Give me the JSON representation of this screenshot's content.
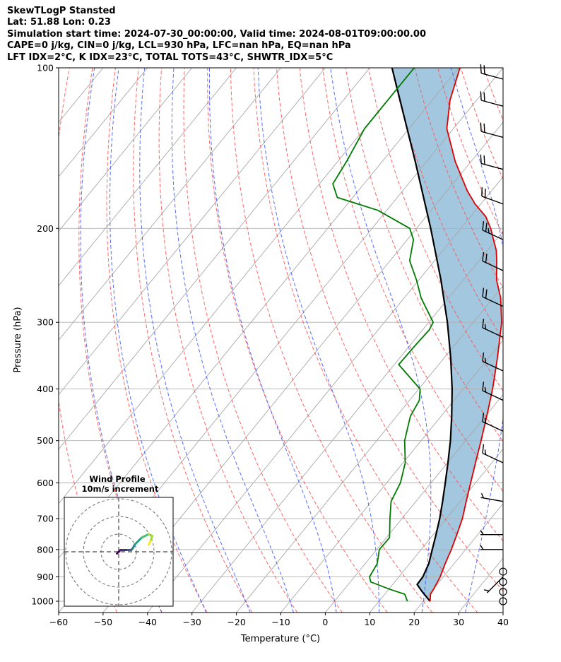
{
  "header": {
    "title": "SkewTLogP Stansted",
    "location": "Lat: 51.88   Lon: 0.23",
    "time": "Simulation start time: 2024-07-30_00:00:00, Valid time: 2024-08-01T09:00:00.00",
    "indices1": "CAPE=0 j/kg, CIN=0 j/kg, LCL=930 hPa, LFC=nan hPa, EQ=nan hPa",
    "indices2": "LFT IDX=2$^\\circ$C, K IDX=23$^\\circ$C, TOTAL TOTS=43$^\\circ$C, SHWTR_IDX=5$^\\circ$C"
  },
  "chart_data": {
    "type": "line",
    "subtype": "skew-T log-p",
    "title": "SkewTLogP Stansted",
    "xlabel": "Temperature ($^\\circ$C)",
    "ylabel": "Pressure (hPa)",
    "xlim": [
      -60,
      40
    ],
    "ylim": [
      1050,
      100
    ],
    "y_scale": "log",
    "grid": true,
    "x_ticks": [
      -60,
      -50,
      -40,
      -30,
      -20,
      -10,
      0,
      10,
      20,
      30,
      40
    ],
    "y_ticks": [
      100,
      200,
      300,
      400,
      500,
      600,
      700,
      800,
      900,
      1000
    ],
    "series": [
      {
        "name": "Temperature",
        "color": "#e00000",
        "points": [
          [
            1000,
            21.5
          ],
          [
            970,
            20.3
          ],
          [
            950,
            20.1
          ],
          [
            900,
            19.3
          ],
          [
            850,
            18.0
          ],
          [
            800,
            16.8
          ],
          [
            750,
            15.3
          ],
          [
            700,
            13.6
          ],
          [
            650,
            11.3
          ],
          [
            600,
            8.9
          ],
          [
            550,
            6.3
          ],
          [
            500,
            3.5
          ],
          [
            450,
            0.3
          ],
          [
            400,
            -3.4
          ],
          [
            350,
            -8.0
          ],
          [
            300,
            -13.6
          ],
          [
            270,
            -18.3
          ],
          [
            250,
            -22.5
          ],
          [
            230,
            -26.0
          ],
          [
            220,
            -28.0
          ],
          [
            210,
            -30.6
          ],
          [
            200,
            -33.3
          ],
          [
            190,
            -36.6
          ],
          [
            180,
            -41.3
          ],
          [
            170,
            -45.5
          ],
          [
            150,
            -53.5
          ],
          [
            130,
            -61.5
          ],
          [
            115,
            -66.0
          ],
          [
            100,
            -69.7
          ]
        ]
      },
      {
        "name": "Dewpoint",
        "color": "#007a00",
        "points": [
          [
            1000,
            16.4
          ],
          [
            970,
            14.5
          ],
          [
            950,
            10.3
          ],
          [
            920,
            4.6
          ],
          [
            900,
            3.4
          ],
          [
            850,
            2.7
          ],
          [
            800,
            0.6
          ],
          [
            760,
            0.7
          ],
          [
            700,
            -2.7
          ],
          [
            650,
            -5.6
          ],
          [
            600,
            -6.9
          ],
          [
            550,
            -9.5
          ],
          [
            500,
            -13.7
          ],
          [
            450,
            -16.9
          ],
          [
            420,
            -17.8
          ],
          [
            400,
            -19.7
          ],
          [
            360,
            -29.0
          ],
          [
            330,
            -28.8
          ],
          [
            310,
            -28.5
          ],
          [
            300,
            -29.0
          ],
          [
            270,
            -36.2
          ],
          [
            250,
            -40.5
          ],
          [
            230,
            -45.6
          ],
          [
            210,
            -48.6
          ],
          [
            200,
            -51.5
          ],
          [
            185,
            -62.0
          ],
          [
            175,
            -73.5
          ],
          [
            165,
            -77.0
          ],
          [
            150,
            -78.0
          ],
          [
            130,
            -80.0
          ],
          [
            100,
            -80.0
          ]
        ]
      },
      {
        "name": "Parcel",
        "color": "#000000",
        "points": [
          [
            1000,
            21.5
          ],
          [
            960,
            18.0
          ],
          [
            930,
            15.5
          ],
          [
            900,
            15.4
          ],
          [
            850,
            14.3
          ],
          [
            800,
            12.5
          ],
          [
            750,
            10.6
          ],
          [
            700,
            8.5
          ],
          [
            650,
            6.0
          ],
          [
            600,
            3.2
          ],
          [
            550,
            0.1
          ],
          [
            500,
            -3.4
          ],
          [
            450,
            -7.6
          ],
          [
            400,
            -12.5
          ],
          [
            350,
            -18.5
          ],
          [
            300,
            -25.8
          ],
          [
            250,
            -35.0
          ],
          [
            200,
            -46.8
          ],
          [
            150,
            -62.5
          ],
          [
            100,
            -85.0
          ]
        ]
      }
    ],
    "shading": {
      "between": [
        "Parcel",
        "Temperature"
      ],
      "color": "#a3c7df"
    },
    "dry_adiabats_theta_c": [
      -50,
      -40,
      -30,
      -20,
      -10,
      0,
      10,
      20,
      30,
      40,
      50,
      60,
      70,
      80,
      90,
      100,
      110,
      120,
      130,
      140,
      150
    ],
    "moist_adiabats_c": [
      -40,
      -30,
      -20,
      -10,
      0,
      10,
      20,
      30,
      40
    ],
    "mixing_ratio_lines_gkg": [
      0.5,
      1,
      2,
      4,
      8,
      16,
      32
    ],
    "wind_barbs": [
      {
        "p": 1000,
        "speed_kt": 0,
        "dir_deg": null
      },
      {
        "p": 960,
        "speed_kt": 0,
        "dir_deg": null
      },
      {
        "p": 920,
        "speed_kt": 0,
        "dir_deg": null
      },
      {
        "p": 880,
        "speed_kt": 0,
        "dir_deg": null
      },
      {
        "p": 900,
        "speed_kt": 5,
        "dir_deg": 225
      },
      {
        "p": 800,
        "speed_kt": 5,
        "dir_deg": 270
      },
      {
        "p": 750,
        "speed_kt": 5,
        "dir_deg": 270
      },
      {
        "p": 650,
        "speed_kt": 5,
        "dir_deg": 280
      },
      {
        "p": 550,
        "speed_kt": 15,
        "dir_deg": 295
      },
      {
        "p": 480,
        "speed_kt": 15,
        "dir_deg": 295
      },
      {
        "p": 420,
        "speed_kt": 15,
        "dir_deg": 295
      },
      {
        "p": 370,
        "speed_kt": 15,
        "dir_deg": 295
      },
      {
        "p": 320,
        "speed_kt": 15,
        "dir_deg": 295
      },
      {
        "p": 280,
        "speed_kt": 20,
        "dir_deg": 295
      },
      {
        "p": 240,
        "speed_kt": 20,
        "dir_deg": 295
      },
      {
        "p": 210,
        "speed_kt": 25,
        "dir_deg": 295
      },
      {
        "p": 180,
        "speed_kt": 20,
        "dir_deg": 290
      },
      {
        "p": 155,
        "speed_kt": 20,
        "dir_deg": 285
      },
      {
        "p": 135,
        "speed_kt": 20,
        "dir_deg": 285
      },
      {
        "p": 118,
        "speed_kt": 20,
        "dir_deg": 285
      },
      {
        "p": 105,
        "speed_kt": 20,
        "dir_deg": 285
      }
    ],
    "inset": {
      "title": "Wind Profile",
      "subtitle": "10m/s increment",
      "ring_speeds_ms": [
        10,
        20,
        30
      ],
      "hodograph_uv_ms": [
        [
          -1,
          -1
        ],
        [
          0,
          0
        ],
        [
          1,
          1
        ],
        [
          3,
          1
        ],
        [
          5,
          1
        ],
        [
          7,
          1
        ],
        [
          8,
          2
        ],
        [
          9,
          4
        ],
        [
          11,
          6
        ],
        [
          13,
          8
        ],
        [
          15,
          9
        ],
        [
          17,
          10
        ],
        [
          19,
          9
        ],
        [
          18,
          6
        ],
        [
          17,
          4
        ]
      ]
    }
  }
}
